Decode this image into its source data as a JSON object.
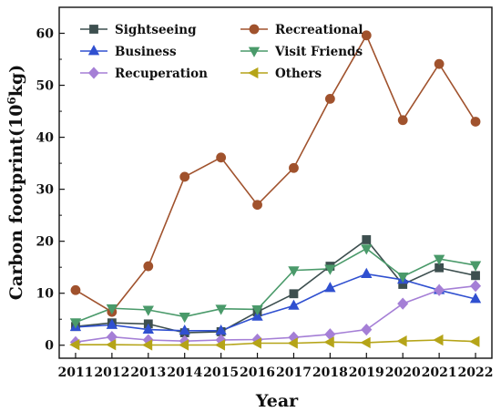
{
  "chart_data": {
    "type": "line",
    "xlabel": "Year",
    "ylabel_main": "Carbon footprint(10",
    "ylabel_sup": "6",
    "ylabel_end": "kg)",
    "x": [
      2011,
      2012,
      2013,
      2014,
      2015,
      2016,
      2017,
      2018,
      2019,
      2020,
      2021,
      2022
    ],
    "xlim": [
      2010.55,
      2022.45
    ],
    "ylim": [
      -2.5,
      65
    ],
    "yticks": [
      0,
      10,
      20,
      30,
      40,
      50,
      60
    ],
    "grid": false,
    "legend_position": "top-left",
    "series": [
      {
        "name": "Sightseeing",
        "marker": "square",
        "color": "#3d4f4f",
        "values": [
          3.6,
          4.3,
          4.1,
          2.4,
          2.6,
          6.4,
          9.9,
          15.2,
          20.3,
          11.7,
          14.9,
          13.4
        ]
      },
      {
        "name": "Recreational",
        "marker": "circle",
        "color": "#a0522d",
        "values": [
          10.6,
          6.4,
          15.2,
          32.4,
          36.1,
          27.0,
          34.1,
          47.4,
          59.6,
          43.3,
          54.1,
          43.0
        ]
      },
      {
        "name": "Business",
        "marker": "triangle-up",
        "color": "#3050d0",
        "values": [
          3.5,
          3.9,
          3.0,
          2.8,
          2.8,
          5.5,
          7.6,
          11.0,
          13.7,
          12.6,
          10.6,
          8.9
        ]
      },
      {
        "name": "Visit Friends",
        "marker": "triangle-down",
        "color": "#4a9a6a",
        "values": [
          4.4,
          7.1,
          6.8,
          5.5,
          7.0,
          6.9,
          14.4,
          14.7,
          18.6,
          13.2,
          16.6,
          15.4
        ]
      },
      {
        "name": "Recuperation",
        "marker": "diamond",
        "color": "#a57fd6",
        "values": [
          0.6,
          1.6,
          1.0,
          0.8,
          1.0,
          1.1,
          1.5,
          2.1,
          3.0,
          8.0,
          10.6,
          11.4
        ]
      },
      {
        "name": "Others",
        "marker": "triangle-left",
        "color": "#b5a418",
        "values": [
          0.1,
          0.1,
          0.05,
          0.05,
          0.05,
          0.4,
          0.4,
          0.6,
          0.5,
          0.8,
          1.0,
          0.7
        ]
      }
    ]
  }
}
